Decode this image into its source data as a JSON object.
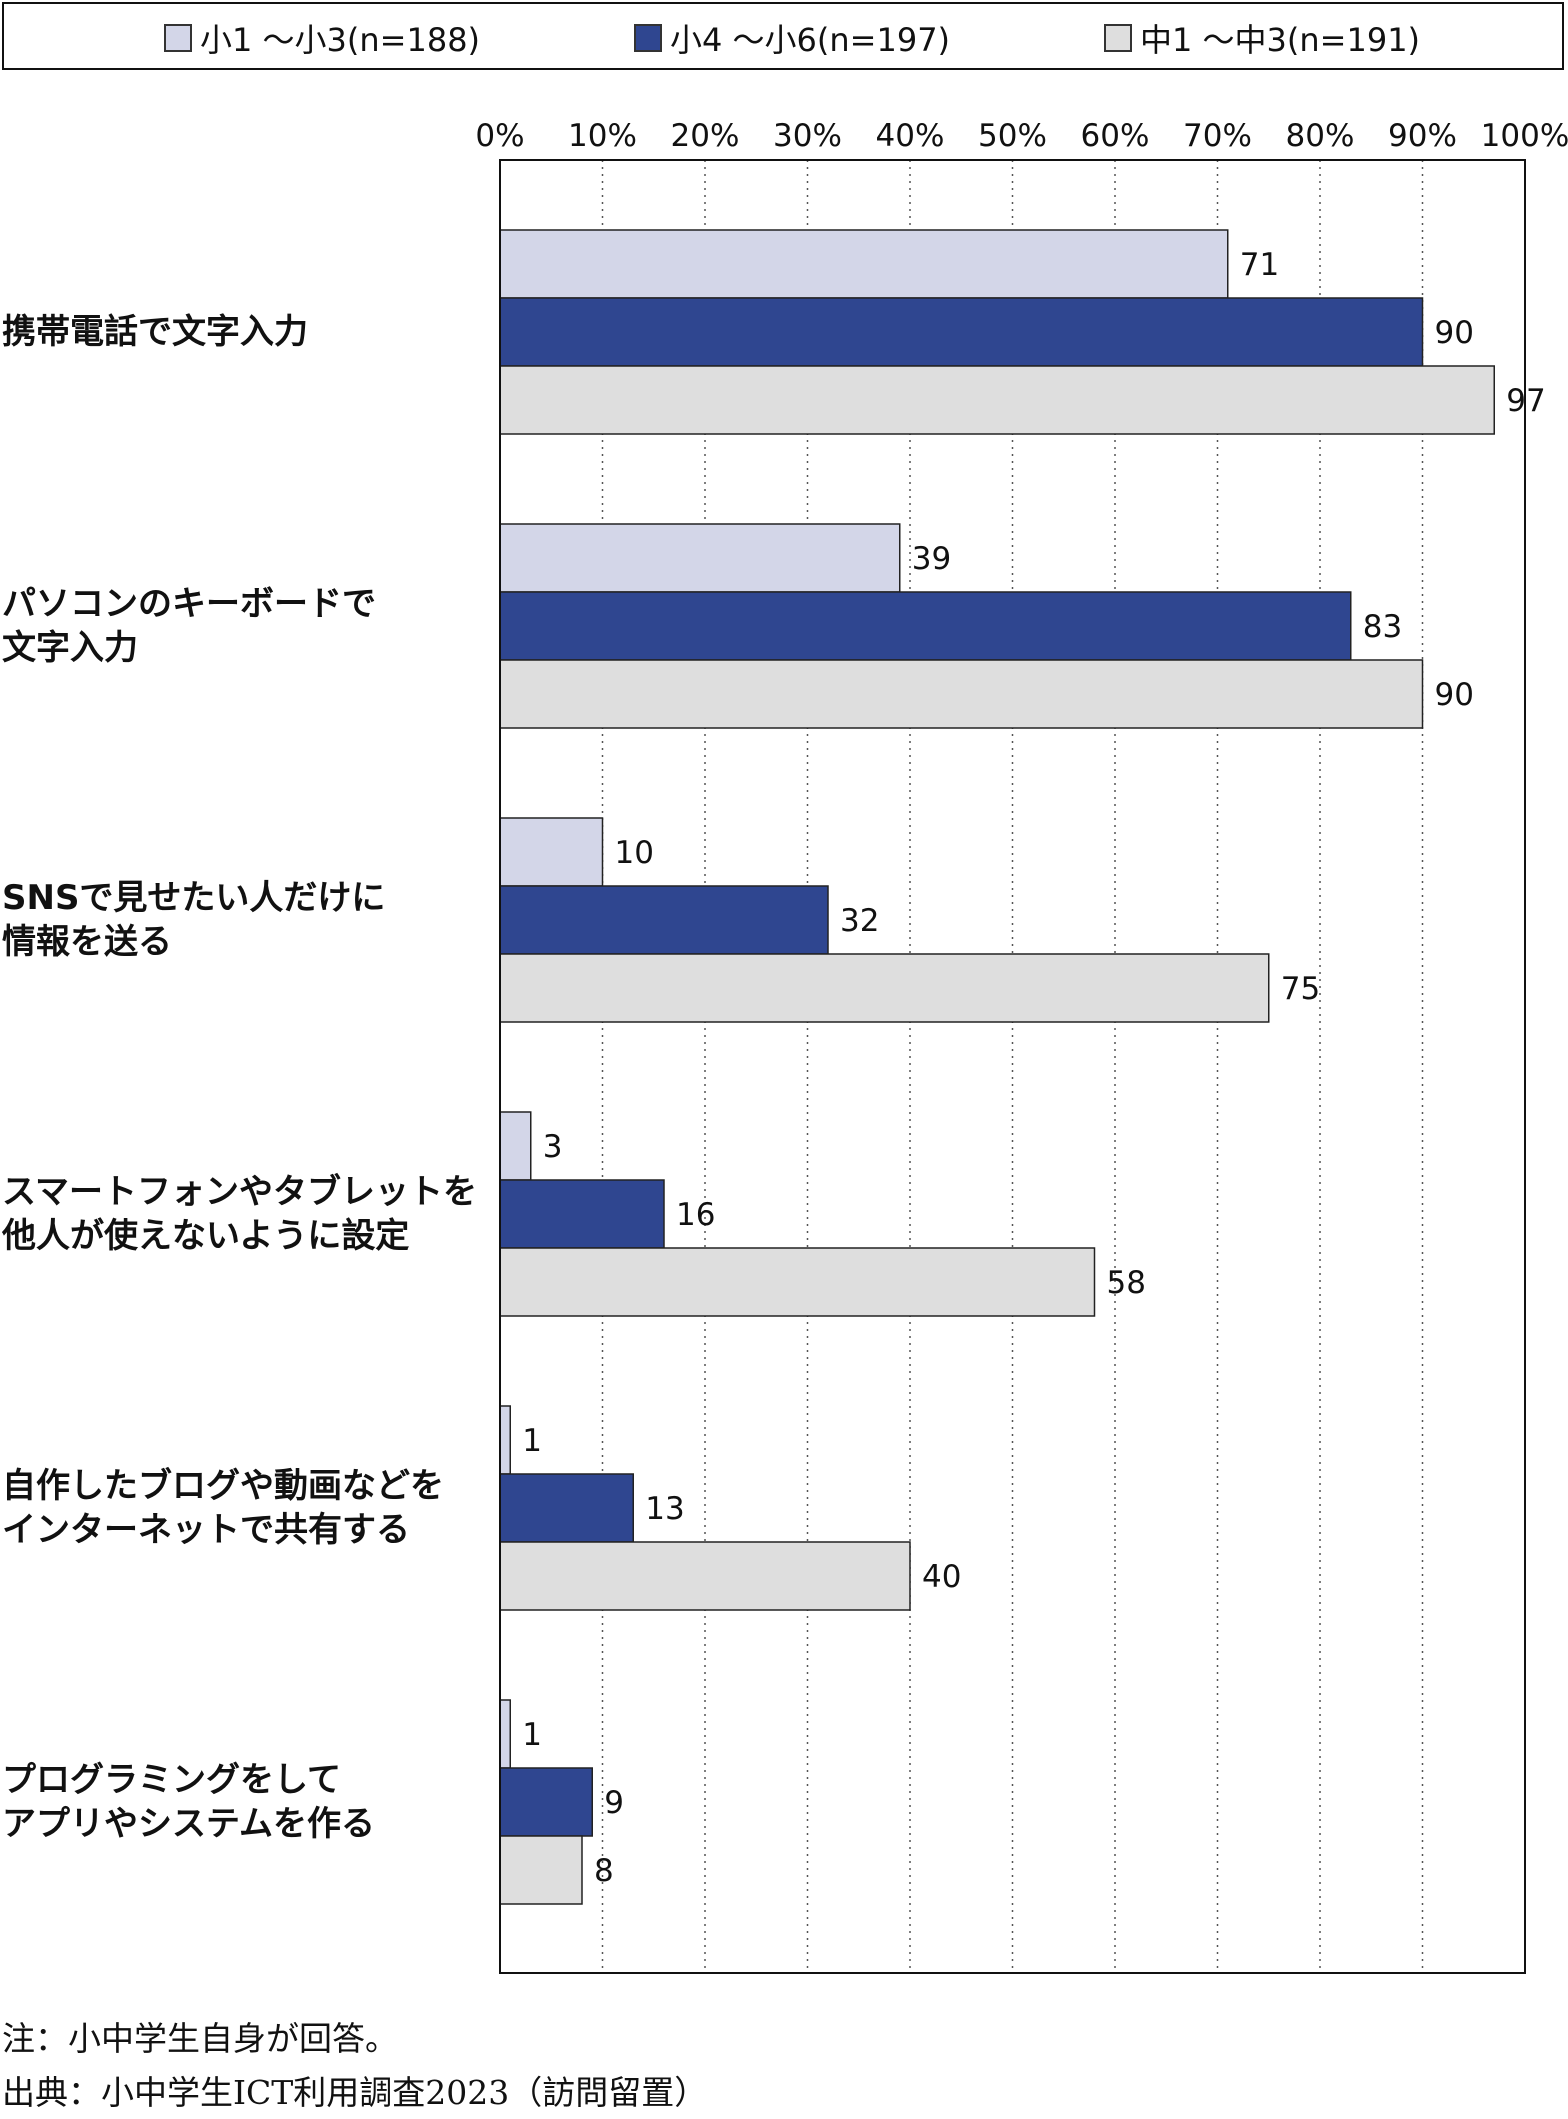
{
  "legend": [
    {
      "label": "小1 ～小3(n=188)",
      "color": "#d3d6e8"
    },
    {
      "label": "小4 ～小6(n=197)",
      "color": "#2f4690"
    },
    {
      "label": "中1 ～中3(n=191)",
      "color": "#dedede"
    }
  ],
  "chart_data": {
    "type": "bar",
    "orientation": "horizontal",
    "categories": [
      [
        "携帯電話で文字入力"
      ],
      [
        "パソコンのキーボードで",
        "文字入力"
      ],
      [
        "SNSで見せたい人だけに",
        "情報を送る"
      ],
      [
        "スマートフォンやタブレットを",
        "他人が使えないように設定"
      ],
      [
        "自作したブログや動画などを",
        "インターネットで共有する"
      ],
      [
        "プログラミングをして",
        "アプリやシステムを作る"
      ]
    ],
    "series": [
      {
        "name": "小1 ～小3(n=188)",
        "color": "#d3d6e8",
        "values": [
          71,
          39,
          10,
          3,
          1,
          1
        ]
      },
      {
        "name": "小4 ～小6(n=197)",
        "color": "#2f4690",
        "values": [
          90,
          83,
          32,
          16,
          13,
          9
        ]
      },
      {
        "name": "中1 ～中3(n=191)",
        "color": "#dedede",
        "values": [
          97,
          90,
          75,
          58,
          40,
          8
        ]
      }
    ],
    "xlim": [
      0,
      100
    ],
    "ticks": [
      "0%",
      "10%",
      "20%",
      "30%",
      "40%",
      "50%",
      "60%",
      "70%",
      "80%",
      "90%",
      "100%"
    ],
    "grid": "vertical dotted",
    "legend_position": "top"
  },
  "notes": {
    "note": "注：小中学生自身が回答。",
    "source": "出典：小中学生ICT利用調査2023（訪問留置）"
  }
}
